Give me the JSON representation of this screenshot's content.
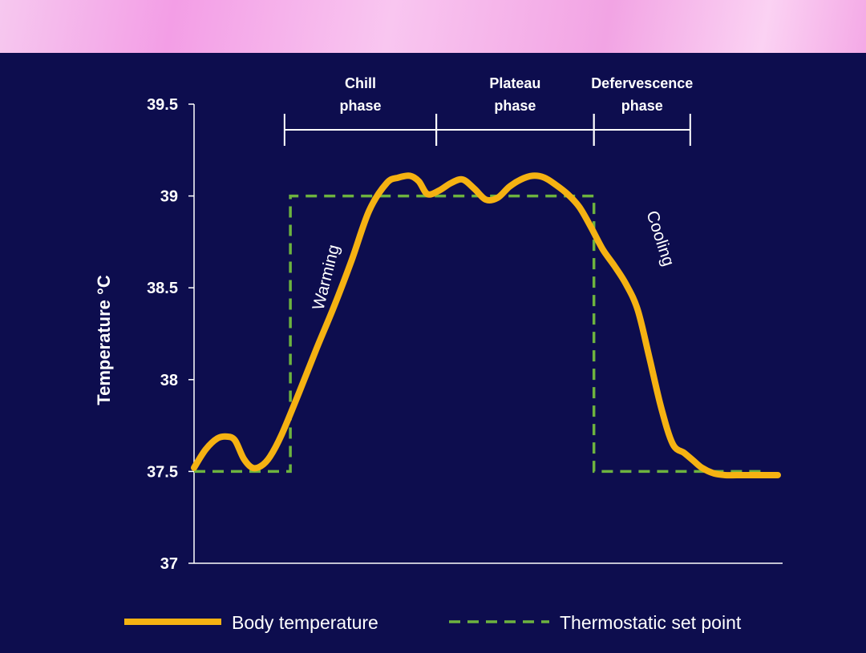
{
  "chart_data": {
    "type": "line",
    "title": "",
    "xlabel": "",
    "ylabel": "Temperature °C",
    "ylim": [
      37,
      39.5
    ],
    "yticks": [
      "37",
      "37.5",
      "38",
      "38.5",
      "39",
      "39.5"
    ],
    "ytick_values": [
      37,
      37.5,
      38,
      38.5,
      39,
      39.5
    ],
    "xlim": [
      0,
      100
    ],
    "phases": [
      {
        "label_line1": "Chill",
        "label_line2": "phase",
        "start": 15.5,
        "end": 41.5
      },
      {
        "label_line1": "Plateau",
        "label_line2": "phase",
        "start": 41.5,
        "end": 68.5
      },
      {
        "label_line1": "Defervescence",
        "label_line2": "phase",
        "start": 68.5,
        "end": 85
      }
    ],
    "annotations": [
      {
        "text": "Warming",
        "x": 23.5,
        "y": 38.55,
        "rotate": -76
      },
      {
        "text": "Cooling",
        "x": 79,
        "y": 38.76,
        "rotate": 72
      }
    ],
    "series": [
      {
        "name": "Body temperature",
        "color": "#f5b212",
        "style": "solid",
        "x": [
          0,
          2,
          4,
          5.6,
          7,
          8.5,
          10,
          11.5,
          13,
          15,
          18,
          21,
          24,
          27,
          30,
          33,
          35,
          37,
          38.5,
          40,
          42,
          44,
          46,
          48,
          50,
          52,
          54,
          56,
          58,
          60,
          62,
          64,
          66,
          68,
          70,
          72,
          74,
          76,
          78,
          80,
          82,
          84,
          85.5,
          87,
          89,
          91,
          93,
          96,
          100
        ],
        "values": [
          37.52,
          37.62,
          37.68,
          37.69,
          37.67,
          37.57,
          37.52,
          37.53,
          37.58,
          37.7,
          37.93,
          38.17,
          38.4,
          38.65,
          38.92,
          39.07,
          39.1,
          39.11,
          39.08,
          39.01,
          39.03,
          39.07,
          39.09,
          39.04,
          38.98,
          38.99,
          39.05,
          39.09,
          39.11,
          39.1,
          39.06,
          39.01,
          38.94,
          38.83,
          38.71,
          38.62,
          38.52,
          38.38,
          38.12,
          37.85,
          37.65,
          37.6,
          37.56,
          37.52,
          37.49,
          37.48,
          37.48,
          37.48,
          37.48
        ]
      },
      {
        "name": "Thermostatic set point",
        "color": "#6db33f",
        "style": "dashed",
        "x": [
          0,
          16.5,
          16.5,
          68.5,
          68.5,
          98
        ],
        "values": [
          37.5,
          37.5,
          39,
          39,
          37.5,
          37.5
        ]
      }
    ],
    "legend": {
      "position": "bottom",
      "items": [
        "Body temperature",
        "Thermostatic set point"
      ]
    }
  }
}
